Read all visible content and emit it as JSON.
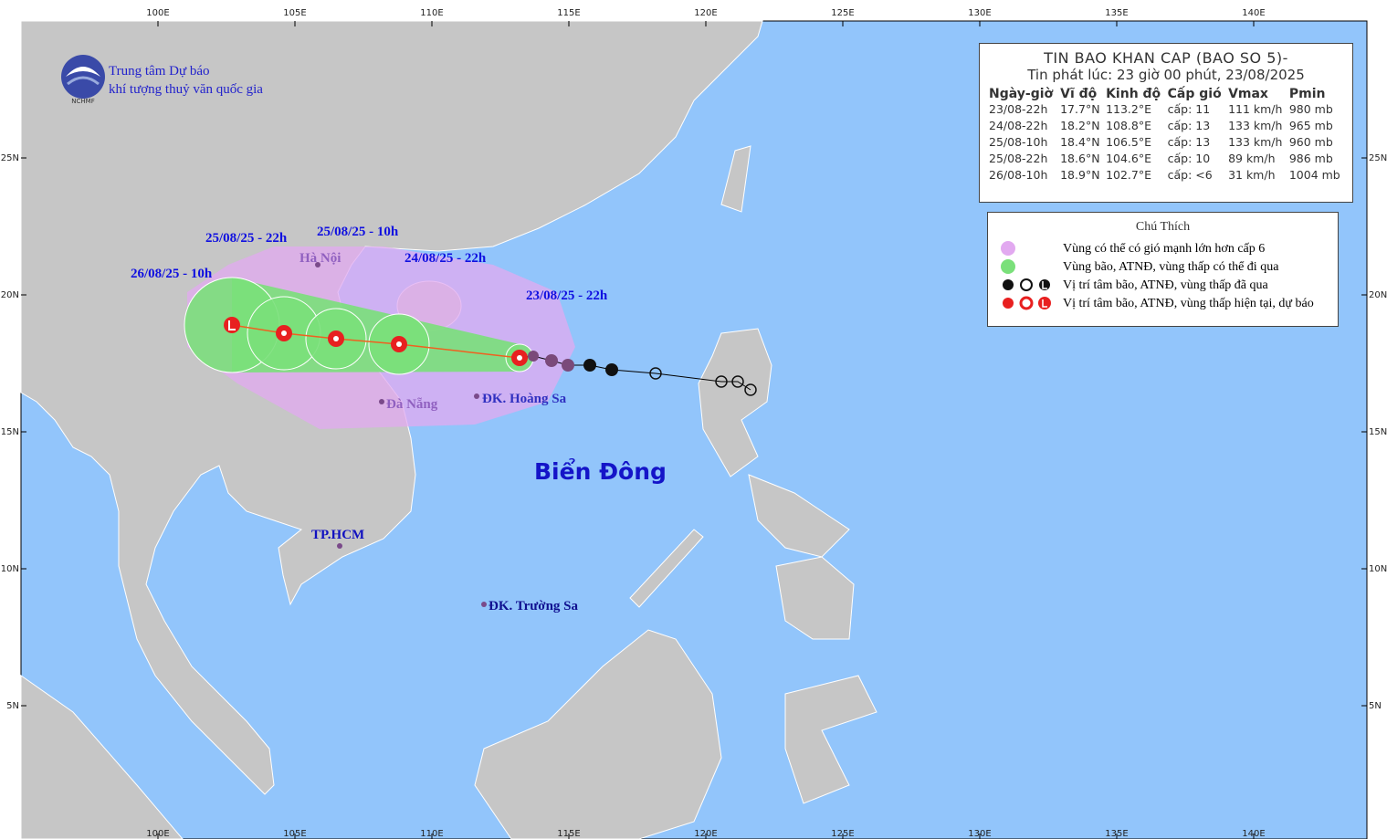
{
  "header": {
    "org_line1": "Trung tâm Dự báo",
    "org_line2": "khí tượng thuỷ văn quốc gia",
    "logo_text": "NCHMF"
  },
  "bulletin": {
    "title": "TIN BAO KHAN CAP (BAO SO 5)-",
    "issued": "Tin phát lúc: 23 giờ 00 phút, 23/08/2025",
    "columns": [
      "Ngày-giờ",
      "Vĩ độ",
      "Kinh độ",
      "Cấp gió",
      "Vmax",
      "Pmin"
    ],
    "rows": [
      [
        "23/08-22h",
        "17.7°N",
        "113.2°E",
        "cấp: 11",
        "111 km/h",
        "980 mb"
      ],
      [
        "24/08-22h",
        "18.2°N",
        "108.8°E",
        "cấp: 13",
        "133 km/h",
        "965 mb"
      ],
      [
        "25/08-10h",
        "18.4°N",
        "106.5°E",
        "cấp: 13",
        "133 km/h",
        "960 mb"
      ],
      [
        "25/08-22h",
        "18.6°N",
        "104.6°E",
        "cấp: 10",
        "89 km/h",
        "986 mb"
      ],
      [
        "26/08-10h",
        "18.9°N",
        "102.7°E",
        "cấp: <6",
        "31 km/h",
        "1004 mb"
      ]
    ]
  },
  "legend": {
    "title": "Chú Thích",
    "items": [
      "Vùng có thể có gió mạnh lớn hơn cấp 6",
      "Vùng bão, ATNĐ, vùng thấp có thể đi qua",
      "Vị trí tâm bão, ATNĐ, vùng thấp đã qua",
      "Vị trí tâm bão, ATNĐ, vùng thấp hiện tại, dự báo"
    ]
  },
  "map": {
    "lon_ticks": [
      "100E",
      "105E",
      "110E",
      "115E",
      "120E",
      "125E",
      "130E",
      "135E",
      "140E"
    ],
    "lat_ticks": [
      "25N",
      "20N",
      "15N",
      "10N",
      "5N"
    ],
    "sea_label": "Biển Đông",
    "places": [
      "Hà Nội",
      "Đà Nẵng",
      "ĐK. Hoàng Sa",
      "TP.HCM",
      "ĐK. Trường Sa"
    ],
    "forecast_labels": [
      "23/08/25 - 22h",
      "24/08/25 - 22h",
      "25/08/25 - 10h",
      "25/08/25 - 22h",
      "26/08/25 - 10h"
    ]
  }
}
